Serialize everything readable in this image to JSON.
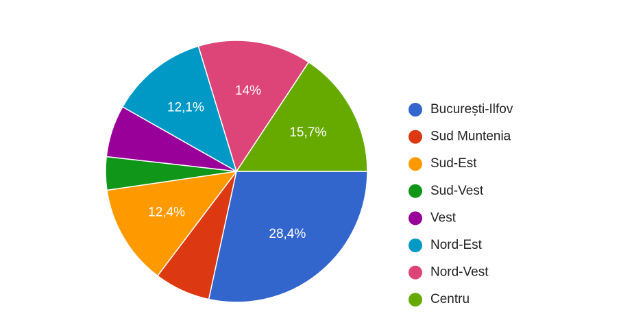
{
  "chart_data": {
    "type": "pie",
    "categories": [
      "București-Ilfov",
      "Sud Muntenia",
      "Sud-Est",
      "Sud-Vest",
      "Vest",
      "Nord-Est",
      "Nord-Vest",
      "Centru"
    ],
    "values": [
      28.4,
      6.9,
      12.4,
      4.1,
      6.4,
      12.1,
      14,
      15.7
    ],
    "value_labels": [
      "28,4%",
      null,
      "12,4%",
      null,
      null,
      "12,1%",
      "14%",
      "15,7%"
    ],
    "colors": [
      "#3366cc",
      "#dc3912",
      "#ff9900",
      "#109618",
      "#990099",
      "#0099c6",
      "#dd4477",
      "#66aa00"
    ],
    "legend": "right"
  }
}
